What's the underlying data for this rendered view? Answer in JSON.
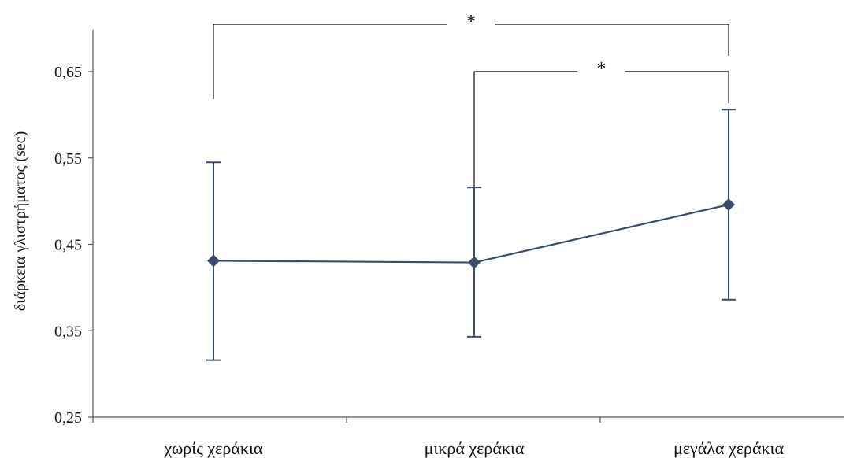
{
  "chart_data": {
    "type": "line",
    "categories": [
      "χωρίς χεράκια",
      "μικρά χεράκια",
      "μεγάλα χεράκια"
    ],
    "series": [
      {
        "values": [
          0.431,
          0.429,
          0.496
        ],
        "error_low": [
          0.316,
          0.343,
          0.386
        ],
        "error_high": [
          0.545,
          0.516,
          0.606
        ]
      }
    ],
    "ylabel": "διάρκεια γλιστρήματος (sec)",
    "ylim": [
      0.25,
      0.7
    ],
    "yticks": [
      "0,25",
      "0,35",
      "0,45",
      "0,55",
      "0,65"
    ],
    "ytick_values": [
      0.25,
      0.35,
      0.45,
      0.55,
      0.65
    ],
    "grid": false,
    "legend": "none",
    "colors": {
      "series": "#3b4b6b",
      "axis": "#555555"
    },
    "significance": [
      {
        "from": 0,
        "to": 2,
        "label": "*"
      },
      {
        "from": 1,
        "to": 2,
        "label": "*"
      }
    ]
  }
}
